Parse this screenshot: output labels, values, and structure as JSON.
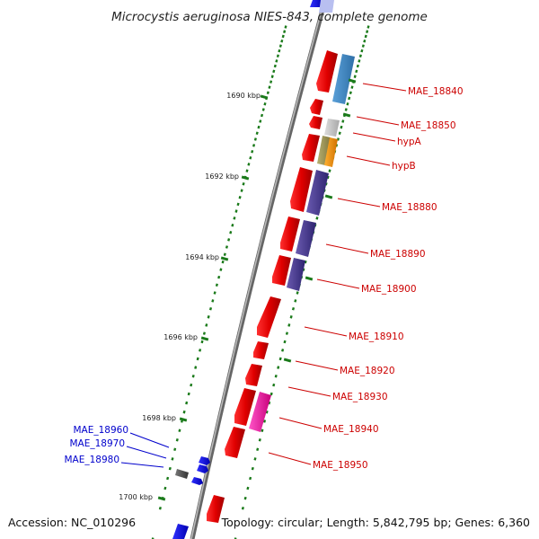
{
  "title": "Microcystis aeruginosa NIES-843, complete genome",
  "footer": {
    "accession": "Accession: NC_010296",
    "summary": "Topology: circular; Length: 5,842,795 bp; Genes: 6,360"
  },
  "colors": {
    "backbone": "#888888",
    "tick": "#1a7a1a",
    "forward_label": "#cc0000",
    "reverse_label": "#0000cc"
  },
  "scale_labels": [
    {
      "label": "1690 kbp",
      "kb": 1690
    },
    {
      "label": "1692 kbp",
      "kb": 1692
    },
    {
      "label": "1694 kbp",
      "kb": 1694
    },
    {
      "label": "1696 kbp",
      "kb": 1696
    },
    {
      "label": "1698 kbp",
      "kb": 1698
    },
    {
      "label": "1700 kbp",
      "kb": 1700
    }
  ],
  "gene_labels": [
    {
      "text": "MAE_18840",
      "strand": "forward"
    },
    {
      "text": "MAE_18850",
      "strand": "forward"
    },
    {
      "text": "hypA",
      "strand": "forward"
    },
    {
      "text": "hypB",
      "strand": "forward"
    },
    {
      "text": "MAE_18880",
      "strand": "forward"
    },
    {
      "text": "MAE_18890",
      "strand": "forward"
    },
    {
      "text": "MAE_18900",
      "strand": "forward"
    },
    {
      "text": "MAE_18910",
      "strand": "forward"
    },
    {
      "text": "MAE_18920",
      "strand": "forward"
    },
    {
      "text": "MAE_18930",
      "strand": "forward"
    },
    {
      "text": "MAE_18940",
      "strand": "forward"
    },
    {
      "text": "MAE_18950",
      "strand": "forward"
    },
    {
      "text": "MAE_18960",
      "strand": "reverse"
    },
    {
      "text": "MAE_18970",
      "strand": "reverse"
    },
    {
      "text": "MAE_18980",
      "strand": "reverse"
    }
  ]
}
